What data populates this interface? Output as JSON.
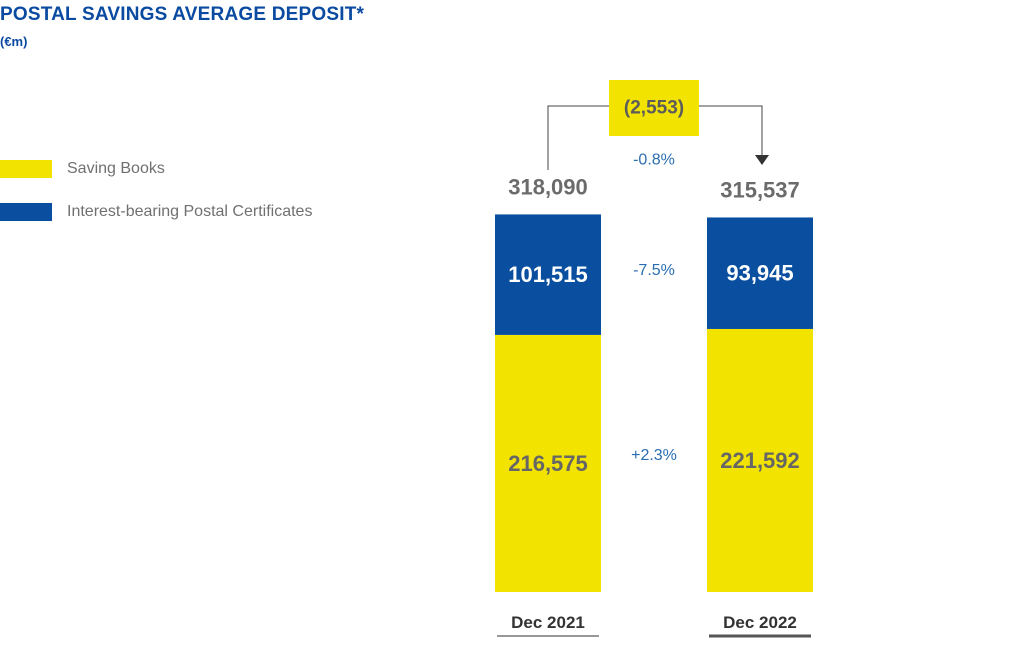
{
  "chart_data": {
    "type": "bar",
    "stacked": true,
    "title": "POSTAL SAVINGS AVERAGE DEPOSIT*",
    "subtitle": "(€m)",
    "categories": [
      "Dec 2021",
      "Dec 2022"
    ],
    "series": [
      {
        "name": "Saving Books",
        "values": [
          216575,
          221592
        ],
        "labels": [
          "216,575",
          "221,592"
        ],
        "color": "#f2e300",
        "label_color": "#666666",
        "change_label": "+2.3%"
      },
      {
        "name": "Interest-bearing Postal Certificates",
        "values": [
          101515,
          93945
        ],
        "labels": [
          "101,515",
          "93,945"
        ],
        "color": "#0a4f9f",
        "label_color": "#ffffff",
        "change_label": "-7.5%"
      }
    ],
    "totals": [
      318090,
      315537
    ],
    "total_labels": [
      "318,090",
      "315,537"
    ],
    "total_change_label": "-0.8%",
    "variation_label": "(2,553)",
    "colors": {
      "accent": "#0a4aa0",
      "variation_box": "#f2e300",
      "change_text": "#2a6db0"
    }
  }
}
